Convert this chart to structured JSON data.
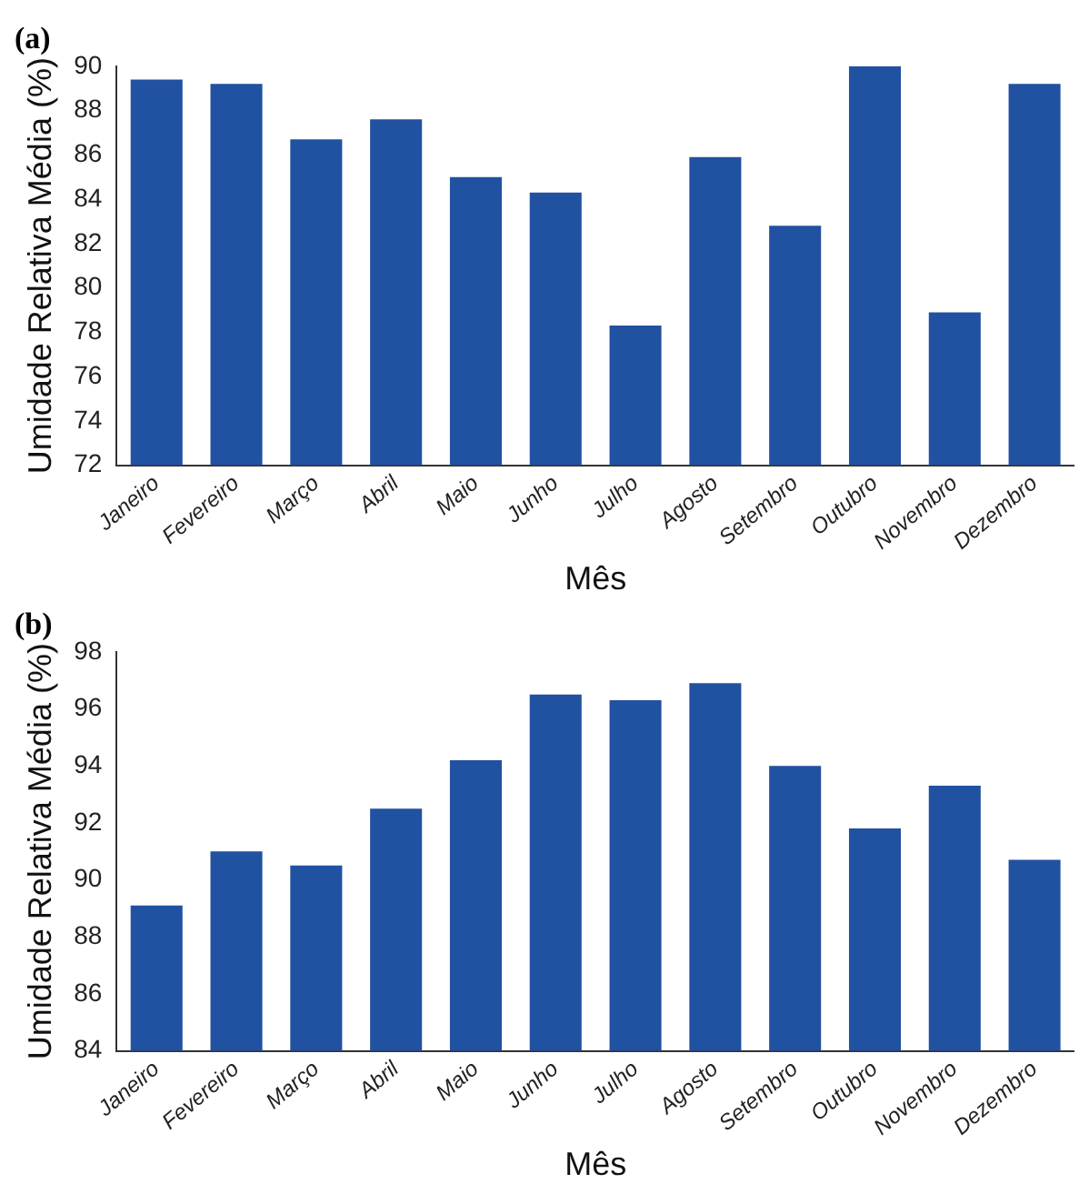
{
  "chart_data": [
    {
      "type": "bar",
      "title": "(a)",
      "xlabel": "Mês",
      "ylabel": "Umidade Relativa Média (%)",
      "categories": [
        "Janeiro",
        "Fevereiro",
        "Março",
        "Abril",
        "Maio",
        "Junho",
        "Julho",
        "Agosto",
        "Setembro",
        "Outubro",
        "Novembro",
        "Dezembro"
      ],
      "values": [
        89.4,
        89.2,
        86.7,
        87.6,
        85.0,
        84.3,
        78.3,
        85.9,
        82.8,
        90.0,
        78.9,
        89.2
      ],
      "color": "#2151a1",
      "ylim": [
        72,
        90
      ],
      "yticks": [
        72,
        74,
        76,
        78,
        80,
        82,
        84,
        86,
        88,
        90
      ],
      "grid": false,
      "legend": false
    },
    {
      "type": "bar",
      "title": "(b)",
      "xlabel": "Mês",
      "ylabel": "Umidade Relativa Média (%)",
      "categories": [
        "Janeiro",
        "Fevereiro",
        "Março",
        "Abril",
        "Maio",
        "Junho",
        "Julho",
        "Agosto",
        "Setembro",
        "Outubro",
        "Novembro",
        "Dezembro"
      ],
      "values": [
        89.1,
        91.0,
        90.5,
        92.5,
        94.2,
        96.5,
        96.3,
        96.9,
        94.0,
        91.8,
        93.3,
        90.7
      ],
      "color": "#2151a1",
      "ylim": [
        84,
        98
      ],
      "yticks": [
        84,
        86,
        88,
        90,
        92,
        94,
        96,
        98
      ],
      "grid": false,
      "legend": false
    }
  ]
}
